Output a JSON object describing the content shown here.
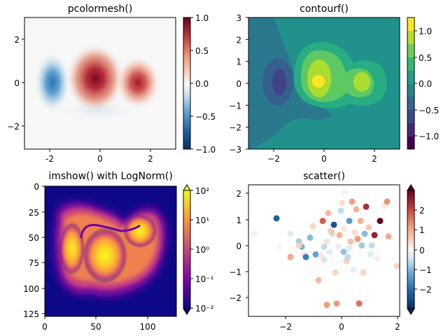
{
  "chart_data": [
    {
      "type": "heatmap",
      "title": "pcolormesh()",
      "xlabel": "",
      "ylabel": "",
      "xlim": [
        -3,
        3
      ],
      "ylim": [
        -3,
        3
      ],
      "xticks": [
        -2,
        0,
        2
      ],
      "yticks": [
        -2,
        0,
        2
      ],
      "colormap": "RdBu_r",
      "colorbar": {
        "range": [
          -1.0,
          1.0
        ],
        "ticks": [
          "1.0",
          "0.5",
          "0.0",
          "−0.5",
          "−1.0"
        ]
      },
      "features": [
        {
          "kind": "negative blob",
          "x": -1.7,
          "y": 0,
          "value": -0.8
        },
        {
          "kind": "positive blob",
          "x": -0.1,
          "y": 0.1,
          "value": 1.0
        },
        {
          "kind": "positive blob",
          "x": 1.5,
          "y": 0,
          "value": 0.85
        }
      ]
    },
    {
      "type": "heatmap",
      "title": "contourf()",
      "xlabel": "",
      "ylabel": "",
      "xlim": [
        -3,
        3
      ],
      "ylim": [
        -3,
        3
      ],
      "xticks": [
        -2,
        0,
        2
      ],
      "yticks": [
        -3,
        -2,
        -1,
        0,
        1,
        2,
        3
      ],
      "colormap": "viridis",
      "colorbar": {
        "range": [
          -1.25,
          1.25
        ],
        "ticks": [
          "1.0",
          "0.5",
          "0.0",
          "−0.5",
          "−1.0"
        ]
      }
    },
    {
      "type": "heatmap",
      "title": "imshow() with LogNorm()",
      "xlabel": "",
      "ylabel": "",
      "xlim": [
        0,
        128
      ],
      "ylim": [
        128,
        0
      ],
      "xticks": [
        "0",
        "50",
        "100"
      ],
      "yticks": [
        "0",
        "25",
        "50",
        "75",
        "100",
        "125"
      ],
      "colormap": "plasma",
      "scale": "log",
      "colorbar": {
        "range": [
          0.01,
          100
        ],
        "ticks": [
          "10²",
          "10¹",
          "10⁰",
          "10⁻¹",
          "10⁻²"
        ]
      }
    },
    {
      "type": "scatter",
      "title": "scatter()",
      "xlabel": "",
      "ylabel": "",
      "xlim": [
        -3.3,
        2.1
      ],
      "ylim": [
        -2.7,
        2.4
      ],
      "xticks": [
        -2,
        0,
        2
      ],
      "yticks": [
        -2,
        -1,
        0,
        1,
        2
      ],
      "colormap": "RdBu_r",
      "colorbar": {
        "range": [
          -3,
          3
        ],
        "ticks": [
          "2",
          "1",
          "0",
          "−1",
          "−2"
        ]
      },
      "points": [
        [
          -2.3,
          1.1,
          -2.2
        ],
        [
          -3.1,
          0.5,
          0.1
        ],
        [
          -2.2,
          0.0,
          0.0
        ],
        [
          -1.8,
          0.5,
          -0.3
        ],
        [
          -1.8,
          -0.4,
          1.0
        ],
        [
          -1.5,
          0.2,
          -0.8
        ],
        [
          -1.4,
          0.0,
          -1.1
        ],
        [
          -1.3,
          -0.3,
          0.2
        ],
        [
          -1.25,
          -0.4,
          -1.8
        ],
        [
          -1.1,
          0.35,
          -1.0
        ],
        [
          -1.0,
          0.8,
          0.4
        ],
        [
          -0.9,
          -0.3,
          -1.3
        ],
        [
          -0.8,
          -1.3,
          0.8
        ],
        [
          -0.7,
          -0.35,
          0.2
        ],
        [
          -0.65,
          1.0,
          1.8
        ],
        [
          -0.6,
          -0.5,
          -0.4
        ],
        [
          -0.5,
          0.2,
          0.3
        ],
        [
          -0.45,
          1.3,
          0.8
        ],
        [
          -0.4,
          -0.2,
          -0.3
        ],
        [
          -0.3,
          0.5,
          -0.5
        ],
        [
          -0.25,
          0.85,
          -2.4
        ],
        [
          -0.2,
          -1.0,
          0.4
        ],
        [
          -0.15,
          -2.2,
          1.2
        ],
        [
          -0.1,
          0.0,
          -0.2
        ],
        [
          -0.05,
          0.45,
          0.9
        ],
        [
          0.0,
          1.4,
          -0.6
        ],
        [
          0.05,
          1.7,
          0.3
        ],
        [
          0.1,
          -0.2,
          -0.9
        ],
        [
          0.1,
          0.7,
          0.2
        ],
        [
          0.15,
          2.1,
          -0.1
        ],
        [
          0.2,
          -0.55,
          0.5
        ],
        [
          0.25,
          -0.4,
          -0.6
        ],
        [
          0.3,
          1.0,
          -1.4
        ],
        [
          0.35,
          0.2,
          0.7
        ],
        [
          0.4,
          1.75,
          1.1
        ],
        [
          0.45,
          -0.9,
          -0.2
        ],
        [
          0.5,
          0.55,
          0.3
        ],
        [
          0.55,
          1.45,
          0.9
        ],
        [
          0.6,
          0.3,
          1.2
        ],
        [
          0.65,
          -2.2,
          1.6
        ],
        [
          0.7,
          1.0,
          0.9
        ],
        [
          0.75,
          0.05,
          -0.8
        ],
        [
          0.8,
          -1.0,
          0.4
        ],
        [
          0.85,
          0.5,
          -1.0
        ],
        [
          0.9,
          1.55,
          2.3
        ],
        [
          1.0,
          0.75,
          0.6
        ],
        [
          1.05,
          -0.3,
          -0.3
        ],
        [
          1.1,
          0.05,
          -0.6
        ],
        [
          1.2,
          0.45,
          2.5
        ],
        [
          1.3,
          -0.45,
          0.1
        ],
        [
          1.4,
          1.0,
          3.0
        ],
        [
          1.55,
          1.6,
          0.2
        ],
        [
          1.65,
          1.75,
          1.3
        ],
        [
          1.7,
          0.4,
          1.0
        ],
        [
          2.0,
          -0.75,
          0.4
        ],
        [
          -0.5,
          -2.25,
          1.2
        ],
        [
          -0.35,
          0.6,
          0.6
        ],
        [
          -1.5,
          0.05,
          0.5
        ],
        [
          -0.6,
          0.0,
          -0.6
        ],
        [
          0.3,
          -0.05,
          -0.3
        ]
      ]
    }
  ]
}
